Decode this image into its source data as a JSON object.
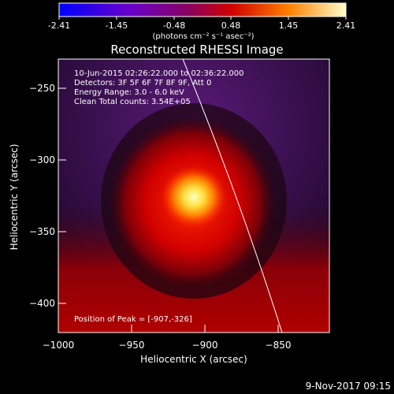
{
  "colorbar": {
    "ticks": [
      "-2.41",
      "-1.45",
      "-0.48",
      "0.48",
      "1.45",
      "2.41"
    ],
    "unit_label": "(photons cm⁻² s⁻¹ asec⁻²)"
  },
  "plot": {
    "title": "Reconstructed RHESSI Image",
    "xlabel": "Heliocentric X (arcsec)",
    "ylabel": "Heliocentric Y (arcsec)",
    "x_ticks": [
      "−1000",
      "−950",
      "−900",
      "−850"
    ],
    "y_ticks": [
      "−250",
      "−300",
      "−350",
      "−400"
    ]
  },
  "info": {
    "line1": "10-Jun-2015 02:26:22.000 to 02:36:22.000",
    "line2": "Detectors: 3F 5F 6F 7F 8F 9F, Att 0",
    "line3": "Energy Range: 3.0 - 6.0 keV",
    "line4": "Clean    Total counts: 3.54E+05",
    "peak": "Position of Peak = [-907,-326]"
  },
  "footer": {
    "date": "9-Nov-2017 09:15"
  }
}
